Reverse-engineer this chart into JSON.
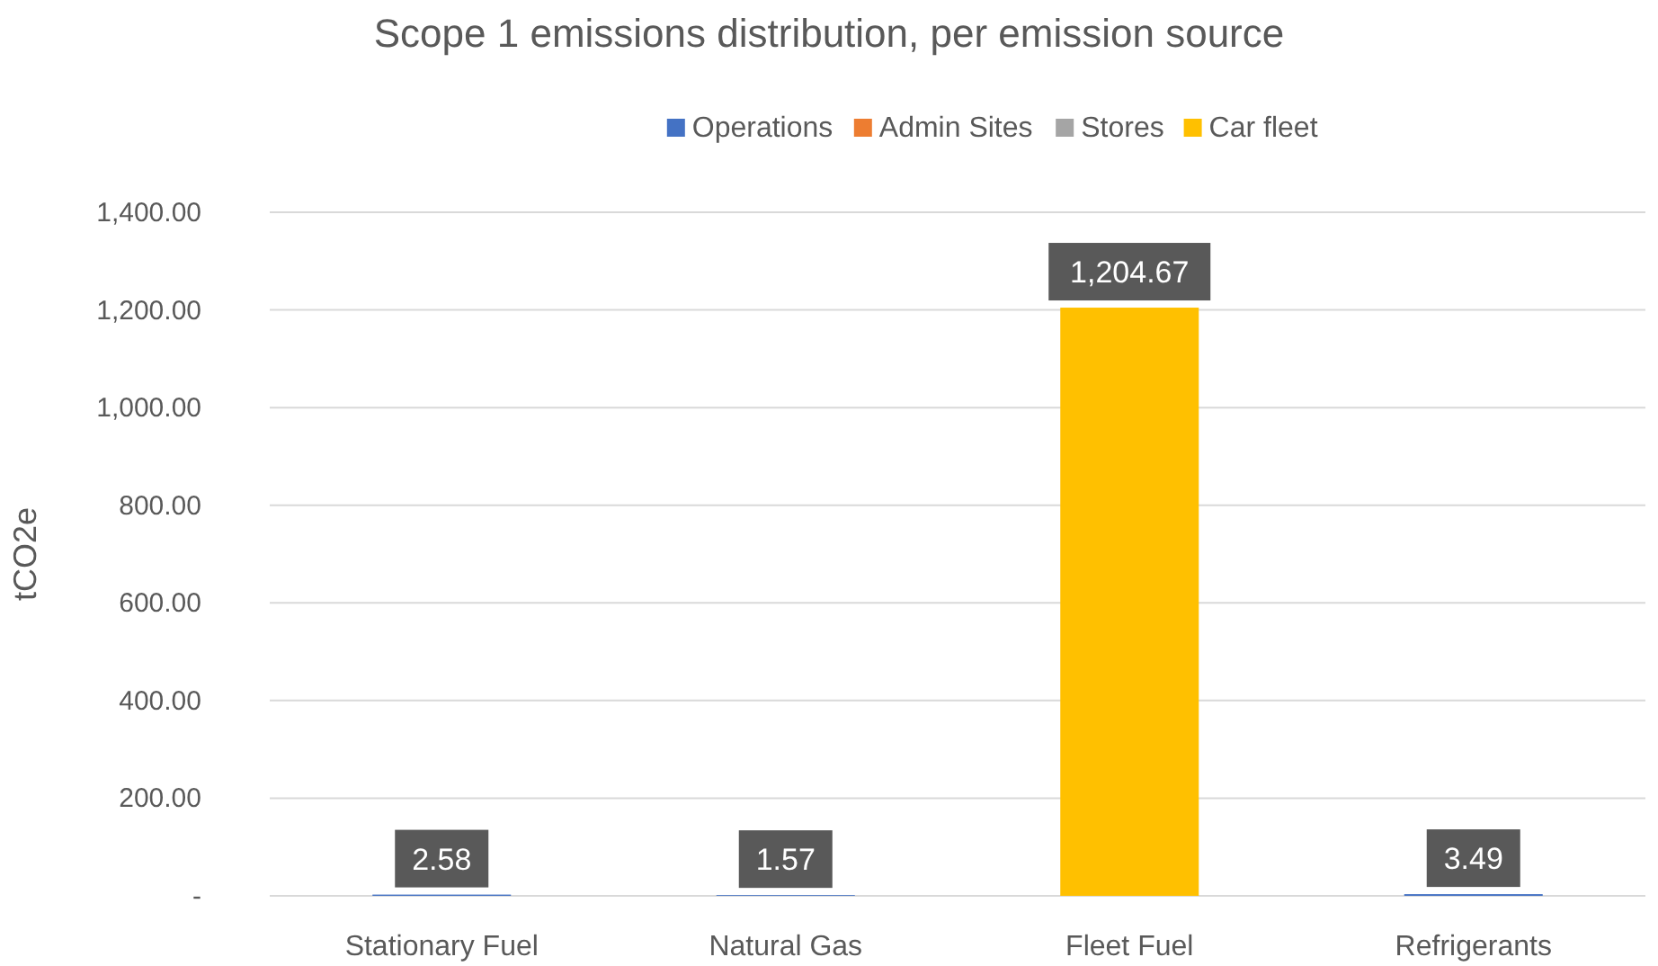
{
  "chart_data": {
    "type": "bar",
    "title": "Scope 1 emissions distribution, per emission source",
    "ylabel": "tCO2e",
    "categories": [
      "Stationary Fuel",
      "Natural Gas",
      "Fleet Fuel",
      "Refrigerants"
    ],
    "series": [
      {
        "name": "Operations",
        "color": "#4472c4",
        "values": [
          2.58,
          1.57,
          0,
          3.49
        ]
      },
      {
        "name": "Admin Sites",
        "color": "#ed7d31",
        "values": [
          0,
          0,
          0,
          0
        ]
      },
      {
        "name": "Stores",
        "color": "#a5a5a5",
        "values": [
          0,
          0,
          0,
          0
        ]
      },
      {
        "name": "Car fleet",
        "color": "#ffc000",
        "values": [
          0,
          0,
          1204.67,
          0
        ]
      }
    ],
    "totals": [
      "2.58",
      "1.57",
      "1,204.67",
      "3.49"
    ],
    "ylim": [
      0,
      1400
    ],
    "yticks": [
      {
        "value": 0,
        "label": "-"
      },
      {
        "value": 200,
        "label": "200.00"
      },
      {
        "value": 400,
        "label": "400.00"
      },
      {
        "value": 600,
        "label": "600.00"
      },
      {
        "value": 800,
        "label": "800.00"
      },
      {
        "value": 1000,
        "label": "1,000.00"
      },
      {
        "value": 1200,
        "label": "1,200.00"
      },
      {
        "value": 1400,
        "label": "1,400.00"
      }
    ],
    "grid": "y",
    "legend": "top"
  }
}
